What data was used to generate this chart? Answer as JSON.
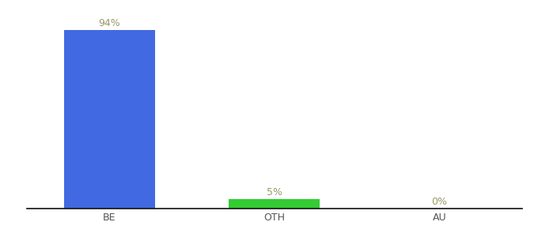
{
  "categories": [
    "BE",
    "OTH",
    "AU"
  ],
  "values": [
    94,
    5,
    0
  ],
  "bar_colors": [
    "#4169e1",
    "#33cc33",
    "#4169e1"
  ],
  "labels": [
    "94%",
    "5%",
    "0%"
  ],
  "ylim": [
    0,
    100
  ],
  "background_color": "#ffffff",
  "label_color": "#999966",
  "axis_line_color": "#111111",
  "tick_label_color": "#555555",
  "label_fontsize": 9,
  "tick_fontsize": 9,
  "bar_width": 0.55
}
